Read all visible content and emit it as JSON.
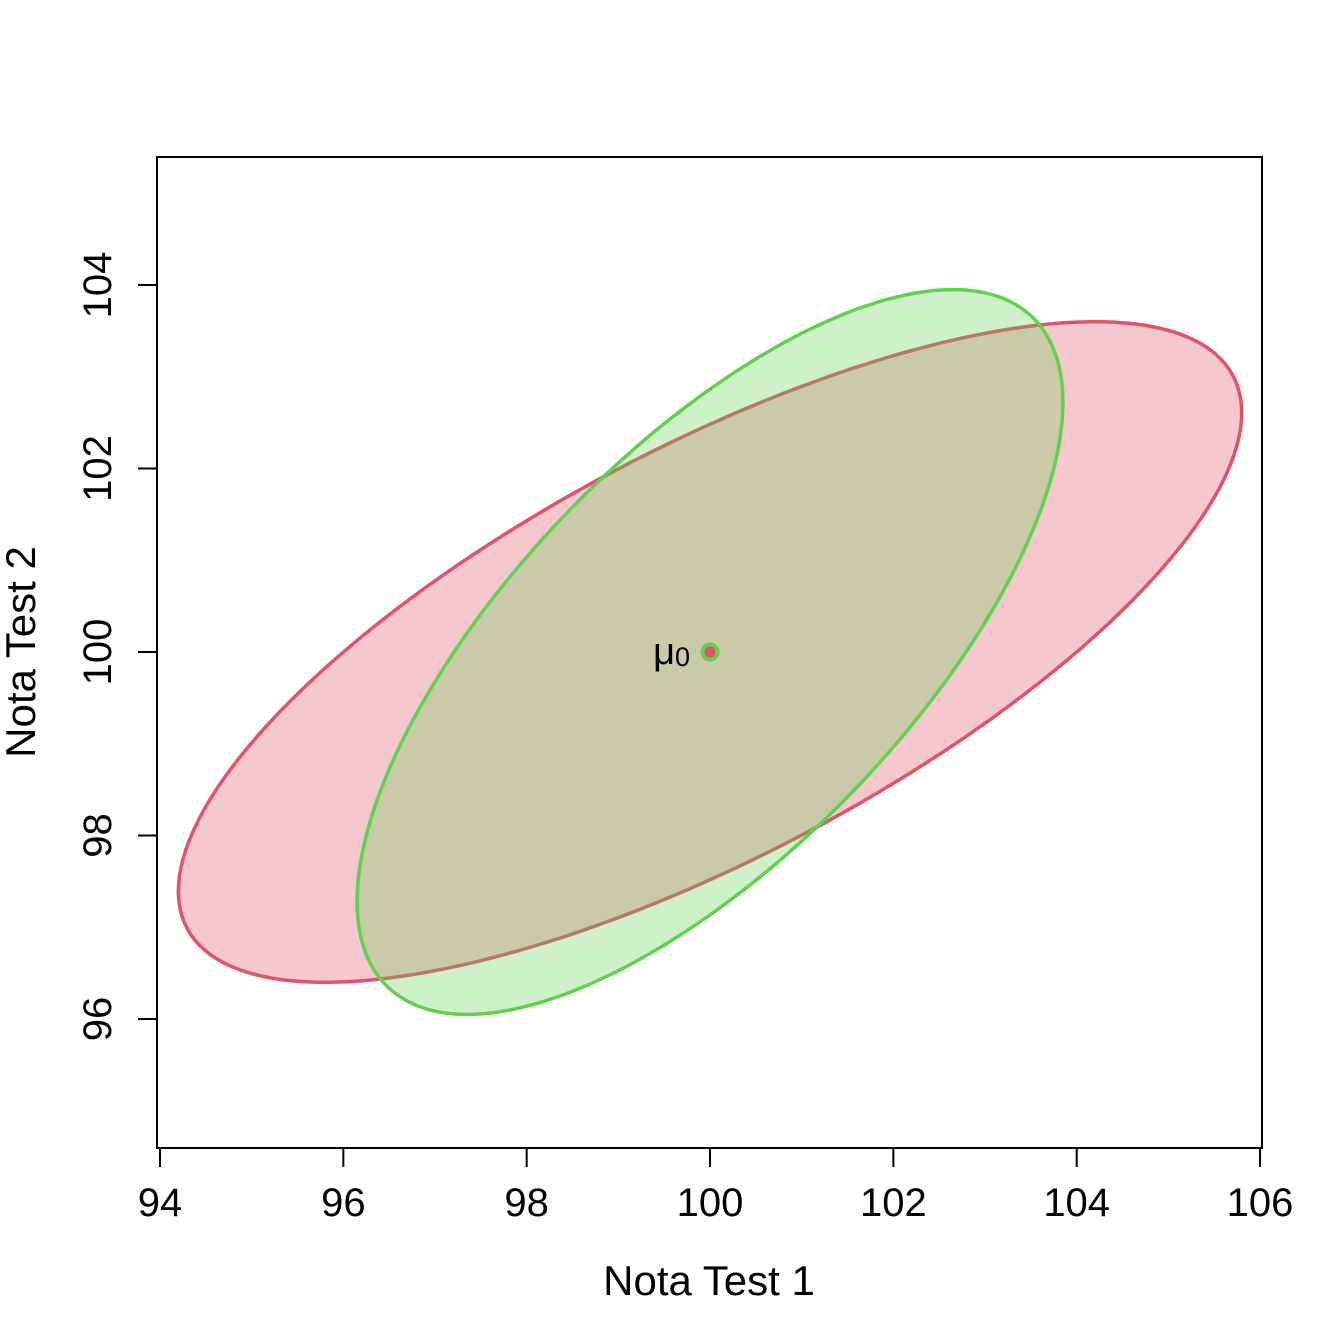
{
  "chart_data": {
    "type": "scatter",
    "title": "",
    "xlabel": "Nota Test 1",
    "ylabel": "Nota Test 2",
    "xlim": [
      94,
      106
    ],
    "ylim": [
      94.7,
      105.3
    ],
    "x_ticks": [
      "94",
      "96",
      "98",
      "100",
      "102",
      "104",
      "106"
    ],
    "y_ticks": [
      "96",
      "98",
      "100",
      "102",
      "104"
    ],
    "grid": false,
    "legend": "none",
    "series": [
      {
        "shape": "ellipse",
        "center": [
          100,
          100
        ],
        "x_extent": [
          94.2,
          105.8
        ],
        "y_extent": [
          96.4,
          103.6
        ],
        "top_point_x": 104.2,
        "stroke": "#DF536B",
        "fill": "#DF536B",
        "fill_opacity": 0.32
      },
      {
        "shape": "ellipse",
        "center": [
          100,
          100
        ],
        "x_extent": [
          96.15,
          103.85
        ],
        "y_extent": [
          96.05,
          103.95
        ],
        "top_point_x": 102.65,
        "stroke": "#61D04F",
        "fill": "#61D04F",
        "fill_opacity": 0.3
      }
    ],
    "points": [
      {
        "x": 100,
        "y": 100,
        "label": "μ",
        "subscript": "0",
        "fill": "#DF536B",
        "stroke": "#61D04F"
      }
    ]
  }
}
